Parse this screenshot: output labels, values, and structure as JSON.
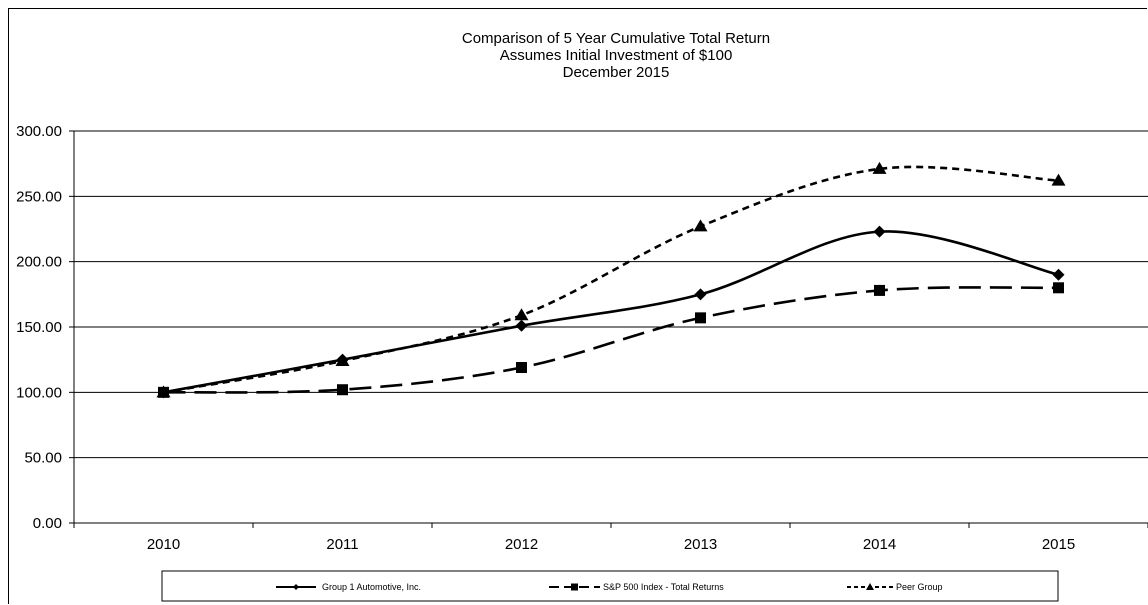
{
  "chart_data": {
    "type": "line",
    "title": "Comparison of 5 Year Cumulative Total Return",
    "subtitle": [
      "Assumes Initial Investment  of $100",
      "December 2015"
    ],
    "xlabel": "",
    "ylabel": "",
    "categories": [
      "2010",
      "2011",
      "2012",
      "2013",
      "2014",
      "2015"
    ],
    "ylim": [
      0,
      300
    ],
    "y_ticks": [
      "0.00",
      "50.00",
      "100.00",
      "150.00",
      "200.00",
      "250.00",
      "300.00"
    ],
    "grid": "horizontal",
    "legend_position": "bottom",
    "series": [
      {
        "name": "Group 1 Automotive, Inc.",
        "marker": "diamond",
        "dash": "solid",
        "values": [
          100,
          125,
          151,
          175,
          223,
          190
        ]
      },
      {
        "name": "S&P 500 Index - Total Returns",
        "marker": "square",
        "dash": "long-dash",
        "values": [
          100,
          102,
          119,
          157,
          178,
          180
        ]
      },
      {
        "name": "Peer Group",
        "marker": "triangle",
        "dash": "short-dash",
        "values": [
          100,
          124,
          159,
          227,
          271,
          262
        ]
      }
    ]
  }
}
